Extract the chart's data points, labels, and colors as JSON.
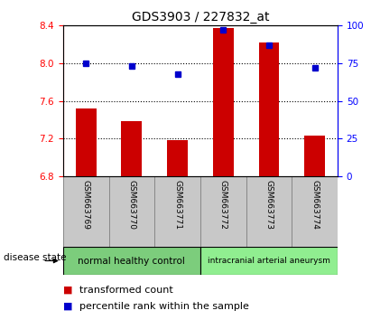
{
  "title": "GDS3903 / 227832_at",
  "samples": [
    "GSM663769",
    "GSM663770",
    "GSM663771",
    "GSM663772",
    "GSM663773",
    "GSM663774"
  ],
  "bar_values": [
    7.52,
    7.38,
    7.18,
    8.37,
    8.22,
    7.23
  ],
  "percentile_values": [
    75,
    73,
    68,
    97,
    87,
    72
  ],
  "bar_bottom": 6.8,
  "ylim_left": [
    6.8,
    8.4
  ],
  "ylim_right": [
    0,
    100
  ],
  "yticks_left": [
    6.8,
    7.2,
    7.6,
    8.0,
    8.4
  ],
  "yticks_right": [
    0,
    25,
    50,
    75,
    100
  ],
  "bar_color": "#cc0000",
  "dot_color": "#0000cc",
  "bar_width": 0.45,
  "groups": [
    {
      "label": "normal healthy control",
      "color": "#7ccd7c"
    },
    {
      "label": "intracranial arterial aneurysm",
      "color": "#90ee90"
    }
  ],
  "group_bg_color": "#c8c8c8",
  "disease_state_label": "disease state",
  "legend_bar_label": "transformed count",
  "legend_dot_label": "percentile rank within the sample",
  "title_fontsize": 10,
  "tick_fontsize": 7.5,
  "legend_fontsize": 8
}
